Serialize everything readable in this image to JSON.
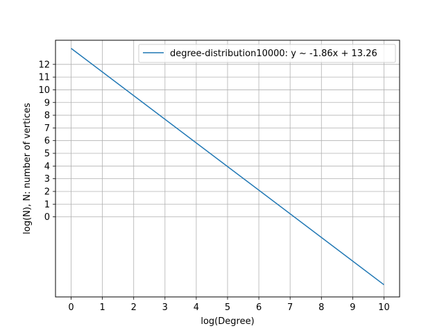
{
  "chart_data": {
    "type": "line",
    "xlabel": "log(Degree)",
    "ylabel": "log(N), N: number of vertices",
    "xlim": [
      -0.5,
      10.5
    ],
    "ylim": [
      -6.3,
      13.9
    ],
    "x_ticks": [
      "0",
      "1",
      "2",
      "3",
      "4",
      "5",
      "6",
      "7",
      "8",
      "9",
      "10"
    ],
    "y_ticks": [
      "0",
      "1",
      "2",
      "3",
      "4",
      "5",
      "6",
      "7",
      "8",
      "9",
      "10",
      "11",
      "12"
    ],
    "grid": true,
    "legend_position": "top-right",
    "series": [
      {
        "name": "degree-distribution10000: y ~ -1.86x + 13.26",
        "color": "#1f77b4",
        "x": [
          0,
          10
        ],
        "y": [
          13.26,
          -5.34
        ]
      }
    ]
  }
}
